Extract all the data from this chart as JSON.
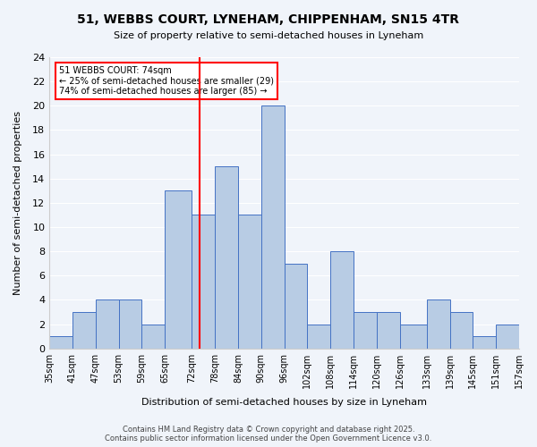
{
  "title": "51, WEBBS COURT, LYNEHAM, CHIPPENHAM, SN15 4TR",
  "subtitle": "Size of property relative to semi-detached houses in Lyneham",
  "xlabel": "Distribution of semi-detached houses by size in Lyneham",
  "ylabel": "Number of semi-detached properties",
  "footer": "Contains HM Land Registry data © Crown copyright and database right 2025.\nContains public sector information licensed under the Open Government Licence v3.0.",
  "bar_color": "#b8cce4",
  "bar_edge_color": "#4472c4",
  "bin_labels": [
    "35sqm",
    "41sqm",
    "47sqm",
    "53sqm",
    "59sqm",
    "65sqm",
    "72sqm",
    "78sqm",
    "84sqm",
    "90sqm",
    "96sqm",
    "102sqm",
    "108sqm",
    "114sqm",
    "120sqm",
    "126sqm",
    "133sqm",
    "139sqm",
    "145sqm",
    "151sqm",
    "157sqm"
  ],
  "bin_edges": [
    35,
    41,
    47,
    53,
    59,
    65,
    72,
    78,
    84,
    90,
    96,
    102,
    108,
    114,
    120,
    126,
    133,
    139,
    145,
    151,
    157
  ],
  "bar_heights": [
    1,
    3,
    4,
    4,
    2,
    13,
    11,
    15,
    11,
    20,
    7,
    2,
    8,
    3,
    3,
    2,
    4,
    3,
    1,
    2
  ],
  "ylim": [
    0,
    24
  ],
  "yticks": [
    0,
    2,
    4,
    6,
    8,
    10,
    12,
    14,
    16,
    18,
    20,
    22,
    24
  ],
  "property_size": 74,
  "vline_x": 74,
  "annotation_title": "51 WEBBS COURT: 74sqm",
  "annotation_line1": "← 25% of semi-detached houses are smaller (29)",
  "annotation_line2": "74% of semi-detached houses are larger (85) →",
  "annotation_box_color": "#ff0000",
  "background_color": "#f0f4fa"
}
